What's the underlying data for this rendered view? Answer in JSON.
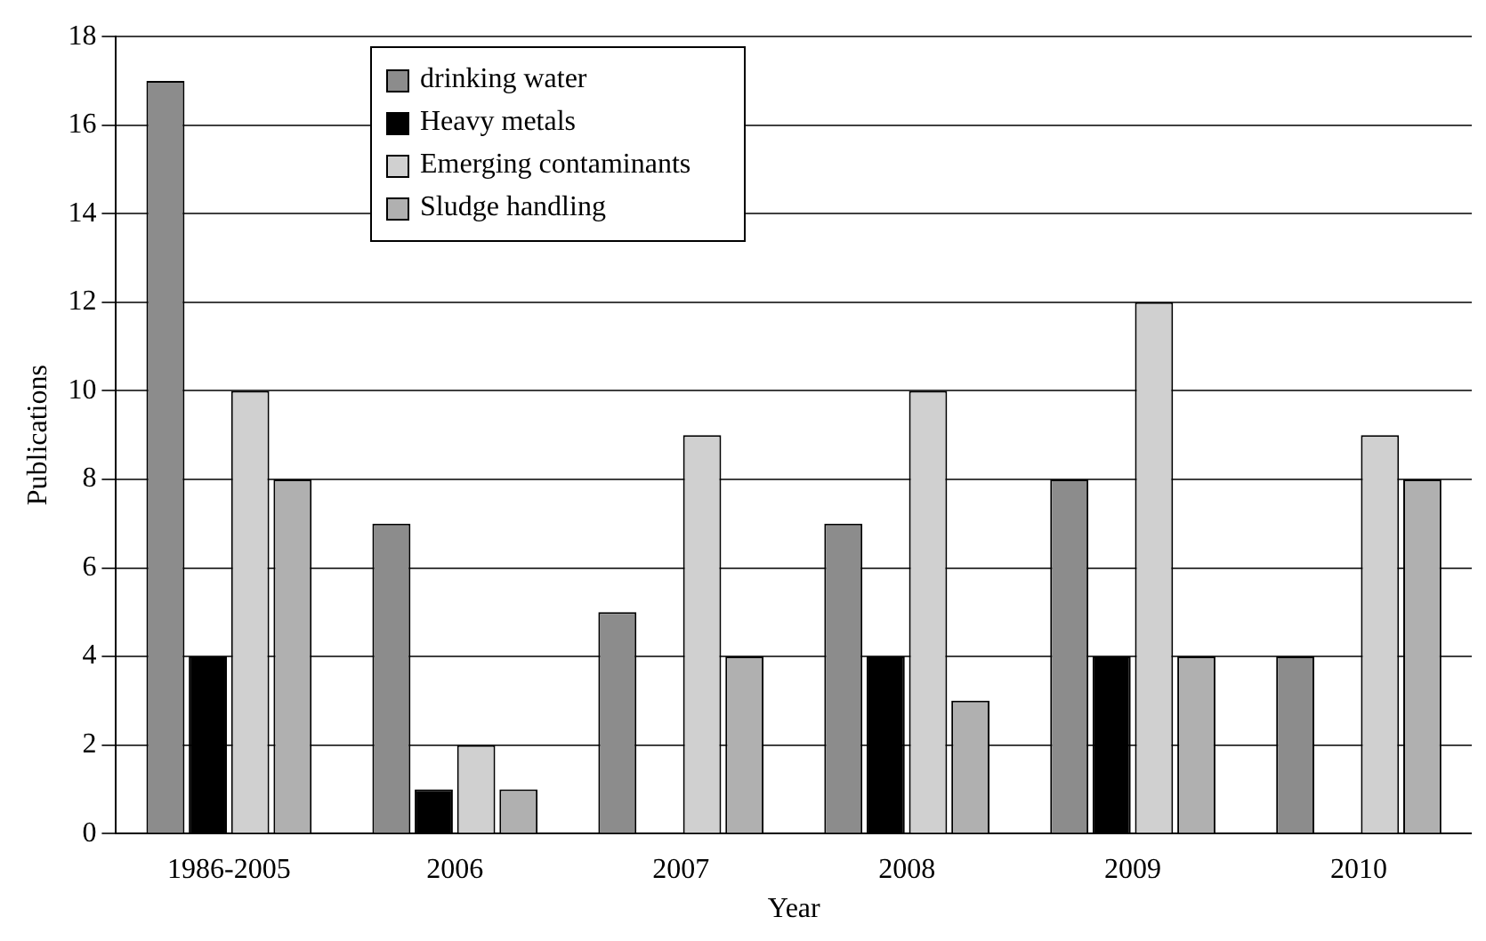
{
  "chart_data": {
    "type": "bar",
    "xlabel": "Year",
    "ylabel": "Publications",
    "categories": [
      "1986-2005",
      "2006",
      "2007",
      "2008",
      "2009",
      "2010"
    ],
    "series": [
      {
        "name": "drinking water",
        "color": "#8c8c8c",
        "values": [
          17,
          7,
          5,
          7,
          8,
          4
        ]
      },
      {
        "name": "Heavy metals",
        "color": "#000000",
        "values": [
          4,
          1,
          0,
          4,
          4,
          0
        ]
      },
      {
        "name": "Emerging contaminants",
        "color": "#d0d0d0",
        "values": [
          10,
          2,
          9,
          10,
          12,
          9
        ]
      },
      {
        "name": "Sludge handling",
        "color": "#b0b0b0",
        "values": [
          8,
          1,
          4,
          3,
          4,
          8
        ]
      }
    ],
    "ylim": [
      0,
      18
    ],
    "yticks": [
      0,
      2,
      4,
      6,
      8,
      10,
      12,
      14,
      16,
      18
    ],
    "grid": "y",
    "legend": "top left"
  }
}
